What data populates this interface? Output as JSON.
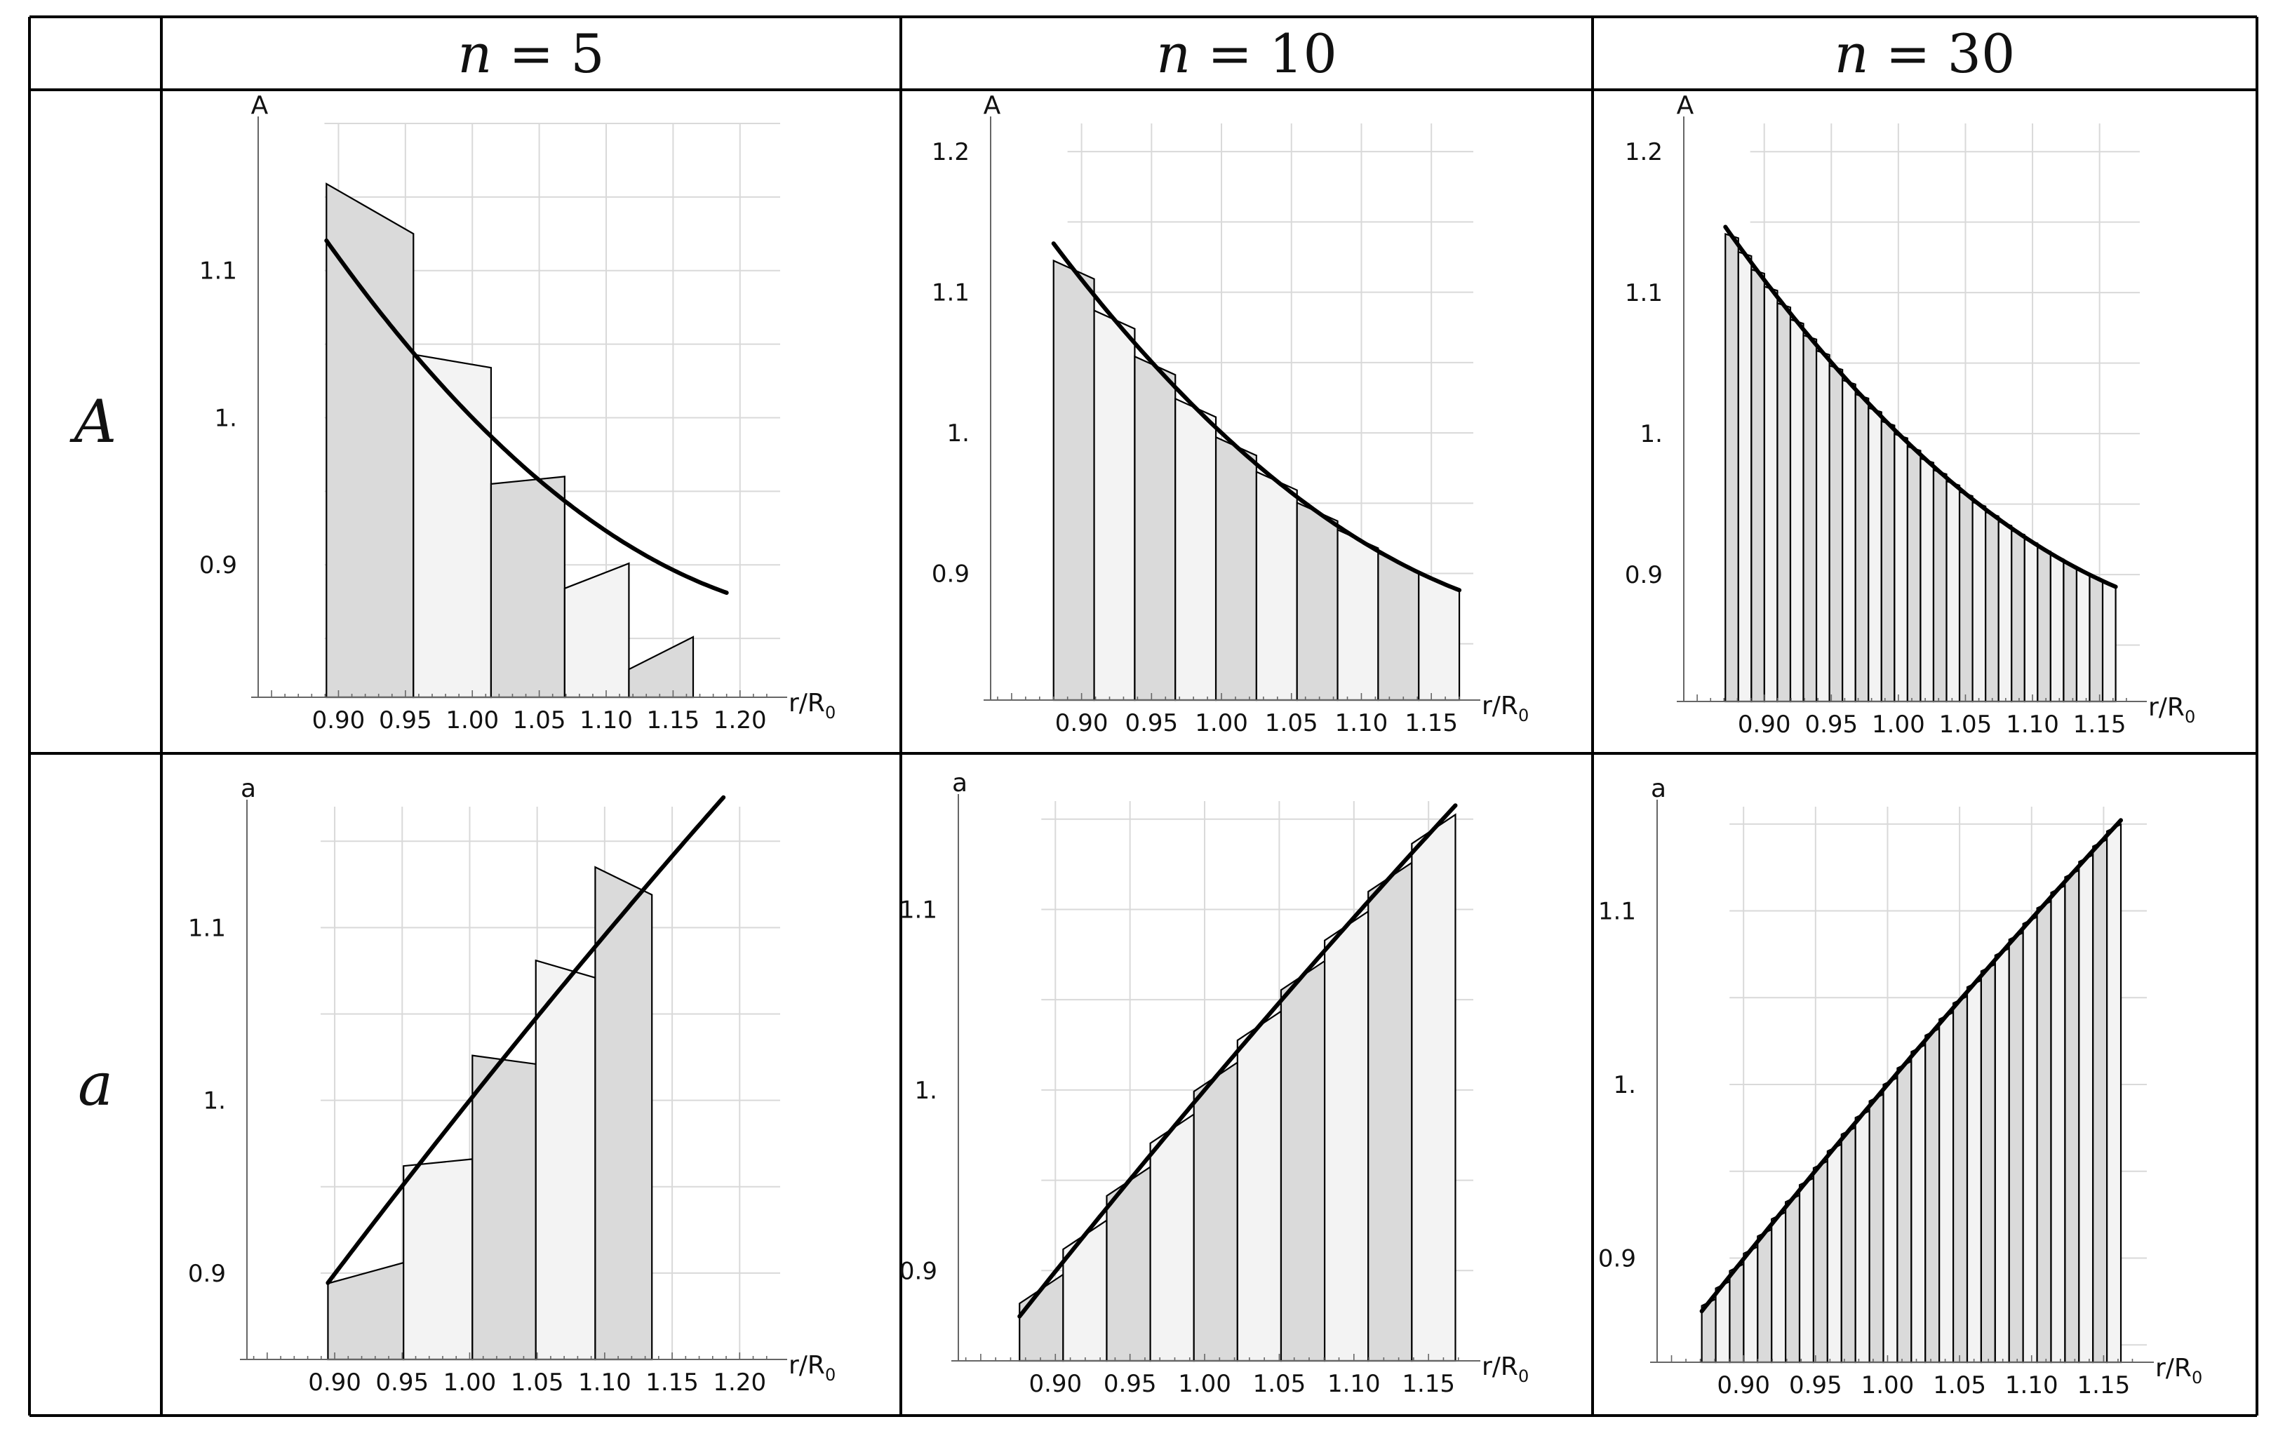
{
  "table": {
    "columns": [
      {
        "label_var": "n",
        "label_eq": " = 5"
      },
      {
        "label_var": "n",
        "label_eq": " = 10"
      },
      {
        "label_var": "n",
        "label_eq": " = 30"
      }
    ],
    "rows": [
      {
        "label": "A"
      },
      {
        "label": "a"
      }
    ]
  },
  "colors": {
    "dark_bar": "#dadada",
    "light_bar": "#f3f3f3",
    "grid": "#d9d9d9",
    "axis": "#666666",
    "curve": "#000000",
    "border": "#000000"
  },
  "chart_data": [
    {
      "id": "A-n5",
      "type": "bar",
      "row": "A",
      "n": 5,
      "title": "",
      "xlabel": "r/R",
      "xlabel_sub": "0",
      "ylabel": "A",
      "xlim": [
        0.84,
        1.23
      ],
      "ylim": [
        0.81,
        1.2
      ],
      "grid": true,
      "xticks": [
        0.9,
        0.95,
        1.0,
        1.05,
        1.1,
        1.15,
        1.2
      ],
      "xtick_labels": [
        "0.90",
        "0.95",
        "1.00",
        "1.05",
        "1.10",
        "1.15",
        "1.20"
      ],
      "yticks": [
        0.9,
        1.0,
        1.1
      ],
      "ytick_labels": [
        "0.9",
        "1.",
        "1.1"
      ],
      "curve": {
        "fn": "A",
        "x0": 0.891,
        "x1": 1.19
      },
      "bars": [
        {
          "x0": 0.891,
          "x1": 0.956,
          "top_left": 1.159,
          "top_right": 1.125
        },
        {
          "x0": 0.956,
          "x1": 1.014,
          "top_left": 1.043,
          "top_right": 1.034
        },
        {
          "x0": 1.014,
          "x1": 1.069,
          "top_left": 0.955,
          "top_right": 0.96
        },
        {
          "x0": 1.069,
          "x1": 1.117,
          "top_left": 0.884,
          "top_right": 0.901
        },
        {
          "x0": 1.117,
          "x1": 1.165,
          "top_left": 0.829,
          "top_right": 0.851
        }
      ]
    },
    {
      "id": "A-n10",
      "type": "bar",
      "row": "A",
      "n": 10,
      "title": "",
      "xlabel": "r/R",
      "xlabel_sub": "0",
      "ylabel": "A",
      "xlim": [
        0.835,
        1.18
      ],
      "ylim": [
        0.81,
        1.22
      ],
      "grid": true,
      "xticks": [
        0.9,
        0.95,
        1.0,
        1.05,
        1.1,
        1.15
      ],
      "xtick_labels": [
        "0.90",
        "0.95",
        "1.00",
        "1.05",
        "1.10",
        "1.15"
      ],
      "yticks": [
        0.9,
        1.0,
        1.1,
        1.2
      ],
      "ytick_labels": [
        "0.9",
        "1.",
        "1.1",
        "1.2"
      ],
      "curve": {
        "fn": "A",
        "x0": 0.88,
        "x1": 1.17
      },
      "n_bars": 10,
      "bar_fn": "A",
      "bar_x0": 0.88,
      "bar_x1": 1.17,
      "bar_slope": -0.45
    },
    {
      "id": "A-n30",
      "type": "bar",
      "row": "A",
      "n": 30,
      "title": "",
      "xlabel": "r/R",
      "xlabel_sub": "0",
      "ylabel": "A",
      "xlim": [
        0.84,
        1.18
      ],
      "ylim": [
        0.81,
        1.22
      ],
      "grid": true,
      "xticks": [
        0.9,
        0.95,
        1.0,
        1.05,
        1.1,
        1.15
      ],
      "xtick_labels": [
        "0.90",
        "0.95",
        "1.00",
        "1.05",
        "1.10",
        "1.15"
      ],
      "yticks": [
        0.9,
        1.0,
        1.1,
        1.2
      ],
      "ytick_labels": [
        "0.9",
        "1.",
        "1.1",
        "1.2"
      ],
      "curve": {
        "fn": "A",
        "x0": 0.871,
        "x1": 1.162
      },
      "n_bars": 30,
      "bar_fn": "A",
      "bar_x0": 0.871,
      "bar_x1": 1.162,
      "bar_slope": -0.3
    },
    {
      "id": "a-n5",
      "type": "bar",
      "row": "a",
      "n": 5,
      "title": "",
      "xlabel": "r/R",
      "xlabel_sub": "0",
      "ylabel": "a",
      "xlim": [
        0.835,
        1.23
      ],
      "ylim": [
        0.85,
        1.17
      ],
      "grid": true,
      "xticks": [
        0.9,
        0.95,
        1.0,
        1.05,
        1.1,
        1.15,
        1.2
      ],
      "xtick_labels": [
        "0.90",
        "0.95",
        "1.00",
        "1.05",
        "1.10",
        "1.15",
        "1.20"
      ],
      "yticks": [
        0.9,
        1.0,
        1.1
      ],
      "ytick_labels": [
        "0.9",
        "1.",
        "1.1"
      ],
      "curve": {
        "fn": "a5",
        "x0": 0.895,
        "x1": 1.188
      },
      "bars": [
        {
          "x0": 0.895,
          "x1": 0.951,
          "top_left": 0.894,
          "top_right": 0.906
        },
        {
          "x0": 0.951,
          "x1": 1.002,
          "top_left": 0.962,
          "top_right": 0.966
        },
        {
          "x0": 1.002,
          "x1": 1.049,
          "top_left": 1.026,
          "top_right": 1.021
        },
        {
          "x0": 1.049,
          "x1": 1.093,
          "top_left": 1.081,
          "top_right": 1.071
        },
        {
          "x0": 1.093,
          "x1": 1.135,
          "top_left": 1.135,
          "top_right": 1.119
        }
      ]
    },
    {
      "id": "a-n10",
      "type": "bar",
      "row": "a",
      "n": 10,
      "title": "",
      "xlabel": "r/R",
      "xlabel_sub": "0",
      "ylabel": "a",
      "xlim": [
        0.835,
        1.18
      ],
      "ylim": [
        0.85,
        1.16
      ],
      "grid": true,
      "xticks": [
        0.9,
        0.95,
        1.0,
        1.05,
        1.1,
        1.15
      ],
      "xtick_labels": [
        "0.90",
        "0.95",
        "1.00",
        "1.05",
        "1.10",
        "1.15"
      ],
      "yticks": [
        0.9,
        1.0,
        1.1
      ],
      "ytick_labels": [
        "0.9",
        "1.",
        "1.1"
      ],
      "curve": {
        "fn": "a",
        "x0": 0.876,
        "x1": 1.168
      },
      "n_bars": 10,
      "bar_fn": "a",
      "bar_x0": 0.876,
      "bar_x1": 1.168,
      "bar_slope": 0.55
    },
    {
      "id": "a-n30",
      "type": "bar",
      "row": "a",
      "n": 30,
      "title": "",
      "xlabel": "r/R",
      "xlabel_sub": "0",
      "ylabel": "a",
      "xlim": [
        0.84,
        1.18
      ],
      "ylim": [
        0.84,
        1.16
      ],
      "grid": true,
      "xticks": [
        0.9,
        0.95,
        1.0,
        1.05,
        1.1,
        1.15
      ],
      "xtick_labels": [
        "0.90",
        "0.95",
        "1.00",
        "1.05",
        "1.10",
        "1.15"
      ],
      "yticks": [
        0.9,
        1.0,
        1.1
      ],
      "ytick_labels": [
        "0.9",
        "1.",
        "1.1"
      ],
      "curve": {
        "fn": "a",
        "x0": 0.871,
        "x1": 1.162
      },
      "n_bars": 30,
      "bar_fn": "a",
      "bar_x0": 0.871,
      "bar_x1": 1.162,
      "bar_slope": 0.4
    }
  ]
}
